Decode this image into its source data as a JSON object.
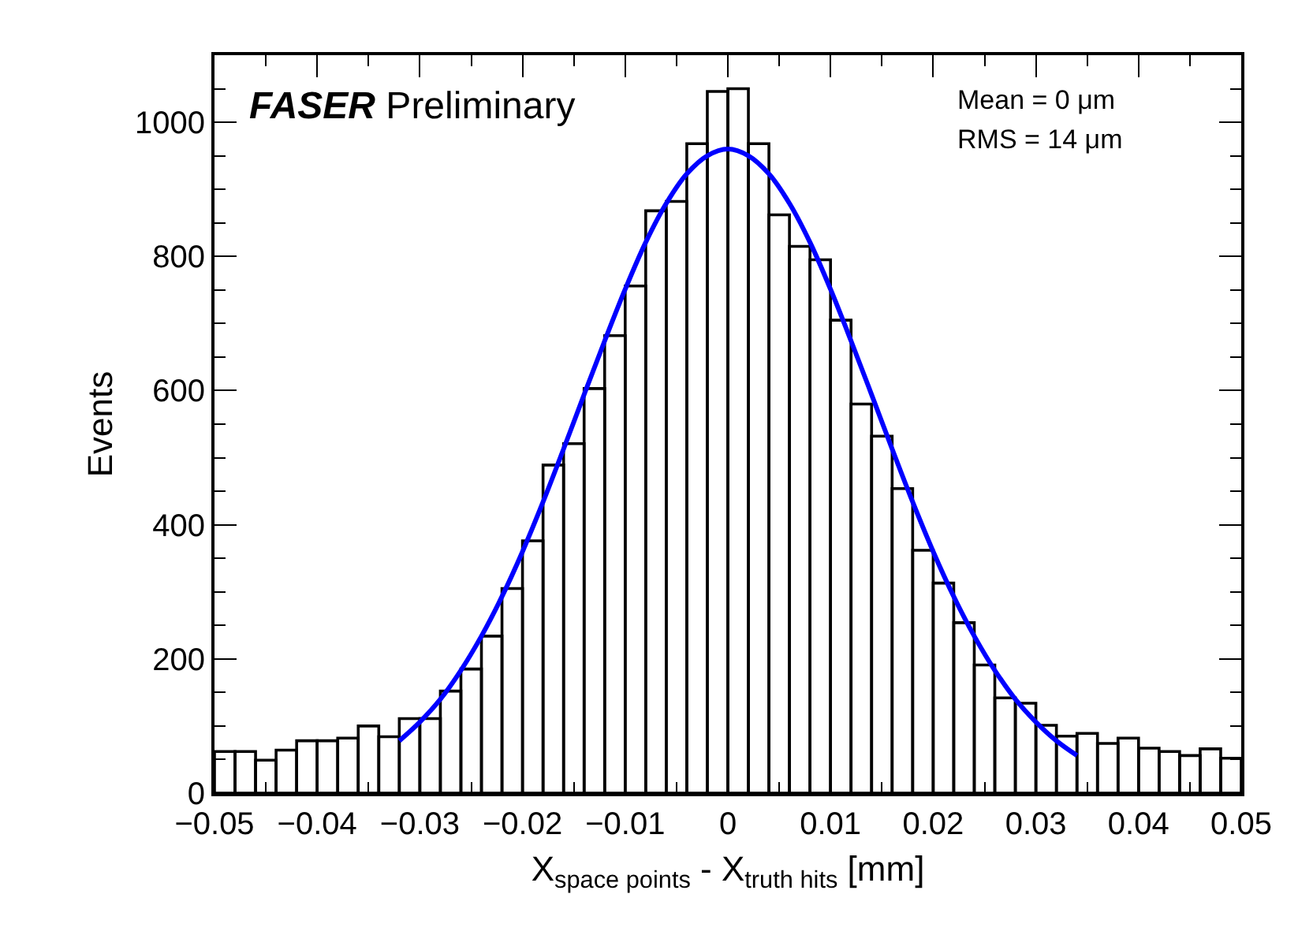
{
  "chart_data": {
    "type": "histogram",
    "xlabel": "X$_{space points}$ - X$_{truth hits}$ [mm]",
    "ylabel": "Events",
    "annotations": [
      "FASER Preliminary",
      "Mean = 0 μm",
      "RMS = 14 μm"
    ],
    "bins": [
      -0.05,
      -0.048,
      -0.046,
      -0.044,
      -0.042,
      -0.04,
      -0.038,
      -0.036,
      -0.034,
      -0.032,
      -0.03,
      -0.028,
      -0.026,
      -0.024,
      -0.022,
      -0.02,
      -0.018,
      -0.016,
      -0.014,
      -0.012,
      -0.01,
      -0.008,
      -0.006,
      -0.004,
      -0.002,
      0,
      0.002,
      0.004,
      0.006,
      0.008,
      0.01,
      0.012,
      0.014,
      0.016,
      0.018,
      0.02,
      0.022,
      0.024,
      0.026,
      0.028,
      0.03,
      0.032,
      0.034,
      0.036,
      0.038,
      0.04,
      0.042,
      0.044,
      0.046,
      0.048,
      0.05
    ],
    "values": [
      62,
      62,
      49,
      64,
      78,
      78,
      82,
      100,
      84,
      111,
      111,
      152,
      185,
      234,
      305,
      376,
      489,
      521,
      603,
      682,
      756,
      868,
      882,
      968,
      1046,
      1050,
      968,
      862,
      815,
      795,
      705,
      580,
      532,
      454,
      362,
      313,
      254,
      191,
      142,
      134,
      101,
      85,
      89,
      74,
      82,
      67,
      62,
      56,
      66,
      52
    ],
    "color": "#000000",
    "series": [
      {
        "type": "line",
        "color": "#0000ff",
        "x": [
          -0.032,
          -0.03,
          -0.028,
          -0.026,
          -0.024,
          -0.022,
          -0.02,
          -0.018,
          -0.016,
          -0.014,
          -0.012,
          -0.01,
          -0.008,
          -0.006,
          -0.004,
          -0.002,
          0,
          0.002,
          0.004,
          0.006,
          0.008,
          0.01,
          0.012,
          0.014,
          0.016,
          0.018,
          0.02,
          0.022,
          0.024,
          0.026,
          0.028,
          0.03,
          0.032,
          0.034
        ],
        "values": [
          78,
          106,
          140,
          183,
          234,
          293,
          360,
          434,
          513,
          594,
          674,
          751,
          821,
          879,
          923,
          950,
          960,
          950,
          923,
          879,
          821,
          751,
          674,
          594,
          513,
          434,
          360,
          293,
          234,
          183,
          140,
          106,
          78,
          56
        ]
      }
    ],
    "xlim": [
      -0.05,
      0.05
    ],
    "xticks": [
      {
        "value": -0.05,
        "label": "−0.05"
      },
      {
        "value": -0.04,
        "label": "−0.04"
      },
      {
        "value": -0.03,
        "label": "−0.03"
      },
      {
        "value": -0.02,
        "label": "−0.02"
      },
      {
        "value": -0.01,
        "label": "−0.01"
      },
      0,
      0.01,
      0.02,
      0.03,
      0.04,
      0.05
    ],
    "ylim": [
      0,
      1100
    ],
    "yticks": [
      0,
      200,
      400,
      600,
      800,
      1000
    ],
    "grid": false
  }
}
